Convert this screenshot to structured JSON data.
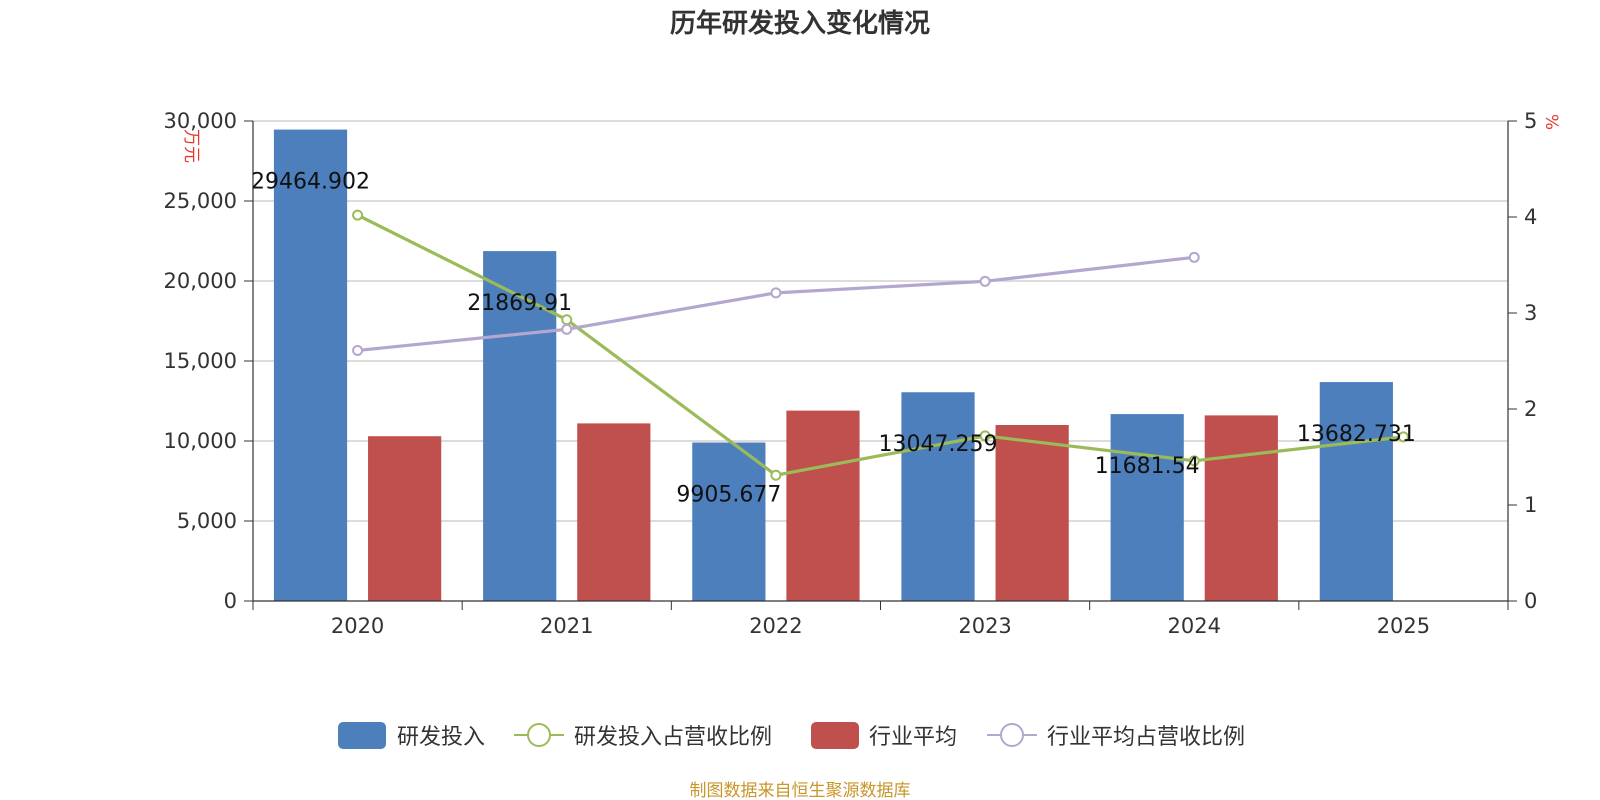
{
  "chart_data": {
    "type": "bar",
    "title": "历年研发投入变化情况",
    "categories": [
      "2020",
      "2021",
      "2022",
      "2023",
      "2024",
      "2025"
    ],
    "left_axis": {
      "unit": "万元",
      "ylim": [
        0,
        30000
      ],
      "ticks": [
        "0",
        "5,000",
        "10,000",
        "15,000",
        "20,000",
        "25,000",
        "30,000"
      ]
    },
    "right_axis": {
      "unit": "%",
      "ylim": [
        0,
        5
      ],
      "ticks": [
        "0",
        "1",
        "2",
        "3",
        "4",
        "5"
      ]
    },
    "series": [
      {
        "name": "研发投入",
        "type": "bar",
        "axis": "left",
        "color": "#4e7fbd",
        "values": [
          29464.902,
          21869.91,
          9905.677,
          13047.259,
          11681.54,
          13682.731
        ],
        "labels": [
          "29464.902",
          "21869.91",
          "9905.677",
          "13047.259",
          "11681.54",
          "13682.731"
        ]
      },
      {
        "name": "研发投入占营收比例",
        "type": "line",
        "axis": "right",
        "color": "#9bbb59",
        "values": [
          4.02,
          2.93,
          1.31,
          1.72,
          1.46,
          1.71
        ]
      },
      {
        "name": "行业平均",
        "type": "bar",
        "axis": "left",
        "color": "#c0504d",
        "values": [
          10300,
          11100,
          11900,
          11000,
          11600,
          null
        ]
      },
      {
        "name": "行业平均占营收比例",
        "type": "line",
        "axis": "right",
        "color": "#b3a6cf",
        "values": [
          2.61,
          2.83,
          3.21,
          3.33,
          3.58,
          null
        ]
      }
    ],
    "legend": {
      "position": "bottom"
    },
    "grid": true
  },
  "source": "制图数据来自恒生聚源数据库"
}
